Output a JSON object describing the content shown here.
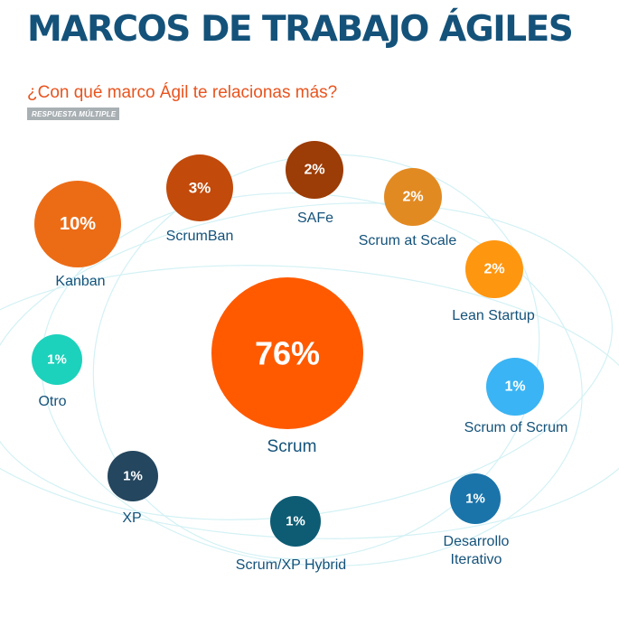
{
  "title": "MARCOS DE TRABAJO ÁGILES",
  "question": "¿Con qué marco Ágil te relacionas más?",
  "badge": "RESPUESTA MÚLTIPLE",
  "chart_data": {
    "type": "bubble",
    "title": "MARCOS DE TRABAJO ÁGILES",
    "subtitle": "¿Con qué marco Ágil te relacionas más?",
    "unit": "%",
    "points": [
      {
        "label": "Scrum",
        "value": 76,
        "color": "#ff5a00"
      },
      {
        "label": "Kanban",
        "value": 10,
        "color": "#ec6c16"
      },
      {
        "label": "ScrumBan",
        "value": 3,
        "color": "#c24a0b"
      },
      {
        "label": "SAFe",
        "value": 2,
        "color": "#9c3c06"
      },
      {
        "label": "Scrum at Scale",
        "value": 2,
        "color": "#e28a22"
      },
      {
        "label": "Lean Startup",
        "value": 2,
        "color": "#ff9610"
      },
      {
        "label": "Scrum of Scrum",
        "value": 1,
        "color": "#3ab4f4"
      },
      {
        "label": "Desarrollo Iterativo",
        "value": 1,
        "color": "#1a74aa"
      },
      {
        "label": "Scrum/XP Hybrid",
        "value": 1,
        "color": "#0d5c74"
      },
      {
        "label": "XP",
        "value": 1,
        "color": "#24465e"
      },
      {
        "label": "Otro",
        "value": 1,
        "color": "#1cd2bc"
      }
    ]
  }
}
